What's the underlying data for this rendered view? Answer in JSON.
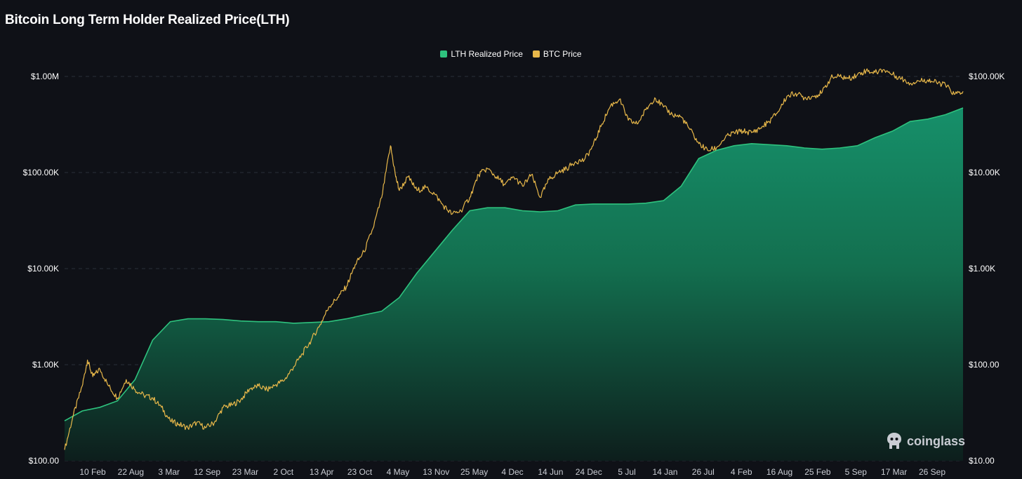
{
  "title": "Bitcoin Long Term Holder Realized Price(LTH)",
  "watermark": "coinglass",
  "colors": {
    "background": "#0f1117",
    "lth": "#2ec27e",
    "btc": "#e8b84a",
    "grid": "#2a2e38"
  },
  "chart_data": {
    "type": "area",
    "title": "Bitcoin Long Term Holder Realized Price(LTH)",
    "legend": {
      "position": "top-center"
    },
    "grid": true,
    "y_left": {
      "scale": "log",
      "range": [
        100,
        1000000
      ],
      "ticks": [
        1000000,
        100000,
        10000,
        1000,
        100
      ],
      "tick_labels": [
        "$1.00M",
        "$100.00K",
        "$10.00K",
        "$1.00K",
        "$100.00"
      ]
    },
    "y_right": {
      "scale": "log",
      "range": [
        10,
        100000
      ],
      "ticks": [
        100000,
        10000,
        1000,
        100,
        10
      ],
      "tick_labels": [
        "$100.00K",
        "$10.00K",
        "$1.00K",
        "$100.00",
        "$10.00"
      ]
    },
    "x_tick_labels": [
      "10 Feb",
      "22 Aug",
      "3 Mar",
      "12 Sep",
      "23 Mar",
      "2 Oct",
      "13 Apr",
      "23 Oct",
      "4 May",
      "13 Nov",
      "25 May",
      "4 Dec",
      "14 Jun",
      "24 Dec",
      "5 Jul",
      "14 Jan",
      "26 Jul",
      "4 Feb",
      "16 Aug",
      "25 Feb",
      "5 Sep",
      "17 Mar",
      "26 Sep"
    ],
    "series": [
      {
        "name": "LTH Realized Price",
        "type": "area",
        "axis": "left",
        "color": "#2ec27e",
        "points": [
          [
            0,
            260
          ],
          [
            1,
            330
          ],
          [
            2,
            360
          ],
          [
            3,
            420
          ],
          [
            4,
            700
          ],
          [
            5,
            1800
          ],
          [
            6,
            2800
          ],
          [
            7,
            3000
          ],
          [
            8,
            3000
          ],
          [
            9,
            2950
          ],
          [
            10,
            2850
          ],
          [
            11,
            2800
          ],
          [
            12,
            2800
          ],
          [
            13,
            2700
          ],
          [
            14,
            2750
          ],
          [
            15,
            2800
          ],
          [
            16,
            3000
          ],
          [
            17,
            3300
          ],
          [
            18,
            3600
          ],
          [
            19,
            5000
          ],
          [
            20,
            9000
          ],
          [
            21,
            15000
          ],
          [
            22,
            25000
          ],
          [
            23,
            40000
          ],
          [
            24,
            43000
          ],
          [
            25,
            43000
          ],
          [
            26,
            40000
          ],
          [
            27,
            39000
          ],
          [
            28,
            40000
          ],
          [
            29,
            46000
          ],
          [
            30,
            47000
          ],
          [
            31,
            47000
          ],
          [
            32,
            47000
          ],
          [
            33,
            48000
          ],
          [
            34,
            51000
          ],
          [
            35,
            72000
          ],
          [
            36,
            140000
          ],
          [
            37,
            170000
          ],
          [
            38,
            190000
          ],
          [
            39,
            200000
          ],
          [
            40,
            195000
          ],
          [
            41,
            190000
          ],
          [
            42,
            180000
          ],
          [
            43,
            175000
          ],
          [
            44,
            180000
          ],
          [
            45,
            190000
          ],
          [
            46,
            230000
          ],
          [
            47,
            270000
          ],
          [
            48,
            340000
          ],
          [
            49,
            360000
          ],
          [
            50,
            400000
          ],
          [
            51,
            470000
          ]
        ]
      },
      {
        "name": "BTC Price",
        "type": "line",
        "axis": "right",
        "color": "#e8b84a",
        "points": [
          [
            0,
            13
          ],
          [
            0.5,
            30
          ],
          [
            1,
            60
          ],
          [
            1.3,
            112
          ],
          [
            1.6,
            75
          ],
          [
            2,
            90
          ],
          [
            2.5,
            60
          ],
          [
            3,
            45
          ],
          [
            3.5,
            70
          ],
          [
            4,
            55
          ],
          [
            4.5,
            48
          ],
          [
            5,
            45
          ],
          [
            5.5,
            36
          ],
          [
            6,
            26
          ],
          [
            6.5,
            24
          ],
          [
            7,
            22
          ],
          [
            7.5,
            25
          ],
          [
            8,
            22
          ],
          [
            8.5,
            25
          ],
          [
            9,
            36
          ],
          [
            9.5,
            38
          ],
          [
            10,
            43
          ],
          [
            10.5,
            56
          ],
          [
            11,
            60
          ],
          [
            11.5,
            55
          ],
          [
            12,
            62
          ],
          [
            12.5,
            70
          ],
          [
            13,
            95
          ],
          [
            13.5,
            130
          ],
          [
            14,
            180
          ],
          [
            14.5,
            260
          ],
          [
            15,
            400
          ],
          [
            15.5,
            500
          ],
          [
            16,
            650
          ],
          [
            16.5,
            1100
          ],
          [
            17,
            1500
          ],
          [
            17.5,
            2600
          ],
          [
            18,
            5500
          ],
          [
            18.5,
            19000
          ],
          [
            18.8,
            9000
          ],
          [
            19,
            6500
          ],
          [
            19.5,
            9000
          ],
          [
            20,
            6500
          ],
          [
            20.5,
            7000
          ],
          [
            21,
            6000
          ],
          [
            21.5,
            4500
          ],
          [
            22,
            3700
          ],
          [
            22.5,
            4000
          ],
          [
            23,
            5500
          ],
          [
            23.5,
            9500
          ],
          [
            24,
            11000
          ],
          [
            24.5,
            9000
          ],
          [
            25,
            7500
          ],
          [
            25.5,
            9000
          ],
          [
            26,
            7200
          ],
          [
            26.5,
            9500
          ],
          [
            27,
            5500
          ],
          [
            27.5,
            8500
          ],
          [
            28,
            10000
          ],
          [
            28.5,
            11000
          ],
          [
            29,
            13000
          ],
          [
            29.5,
            13500
          ],
          [
            30,
            19000
          ],
          [
            30.5,
            32000
          ],
          [
            31,
            50000
          ],
          [
            31.5,
            58000
          ],
          [
            32,
            35000
          ],
          [
            32.5,
            32000
          ],
          [
            33,
            45000
          ],
          [
            33.5,
            60000
          ],
          [
            34,
            48000
          ],
          [
            34.5,
            40000
          ],
          [
            35,
            38000
          ],
          [
            35.5,
            28000
          ],
          [
            36,
            20000
          ],
          [
            36.5,
            17000
          ],
          [
            37,
            18000
          ],
          [
            37.5,
            23000
          ],
          [
            38,
            26000
          ],
          [
            38.5,
            27000
          ],
          [
            39,
            26000
          ],
          [
            39.5,
            29000
          ],
          [
            40,
            34000
          ],
          [
            40.5,
            43000
          ],
          [
            41,
            62000
          ],
          [
            41.5,
            67000
          ],
          [
            42,
            60000
          ],
          [
            42.5,
            62000
          ],
          [
            43,
            68000
          ],
          [
            43.5,
            97000
          ],
          [
            44,
            100000
          ],
          [
            44.5,
            95000
          ],
          [
            45,
            104000
          ],
          [
            45.5,
            115000
          ],
          [
            46,
            110000
          ],
          [
            46.5,
            118000
          ],
          [
            47,
            105000
          ],
          [
            47.5,
            95000
          ],
          [
            48,
            85000
          ],
          [
            48.5,
            90000
          ],
          [
            49,
            92000
          ],
          [
            49.5,
            86000
          ],
          [
            50,
            82000
          ],
          [
            50.5,
            65000
          ],
          [
            51,
            70000
          ]
        ]
      }
    ]
  }
}
